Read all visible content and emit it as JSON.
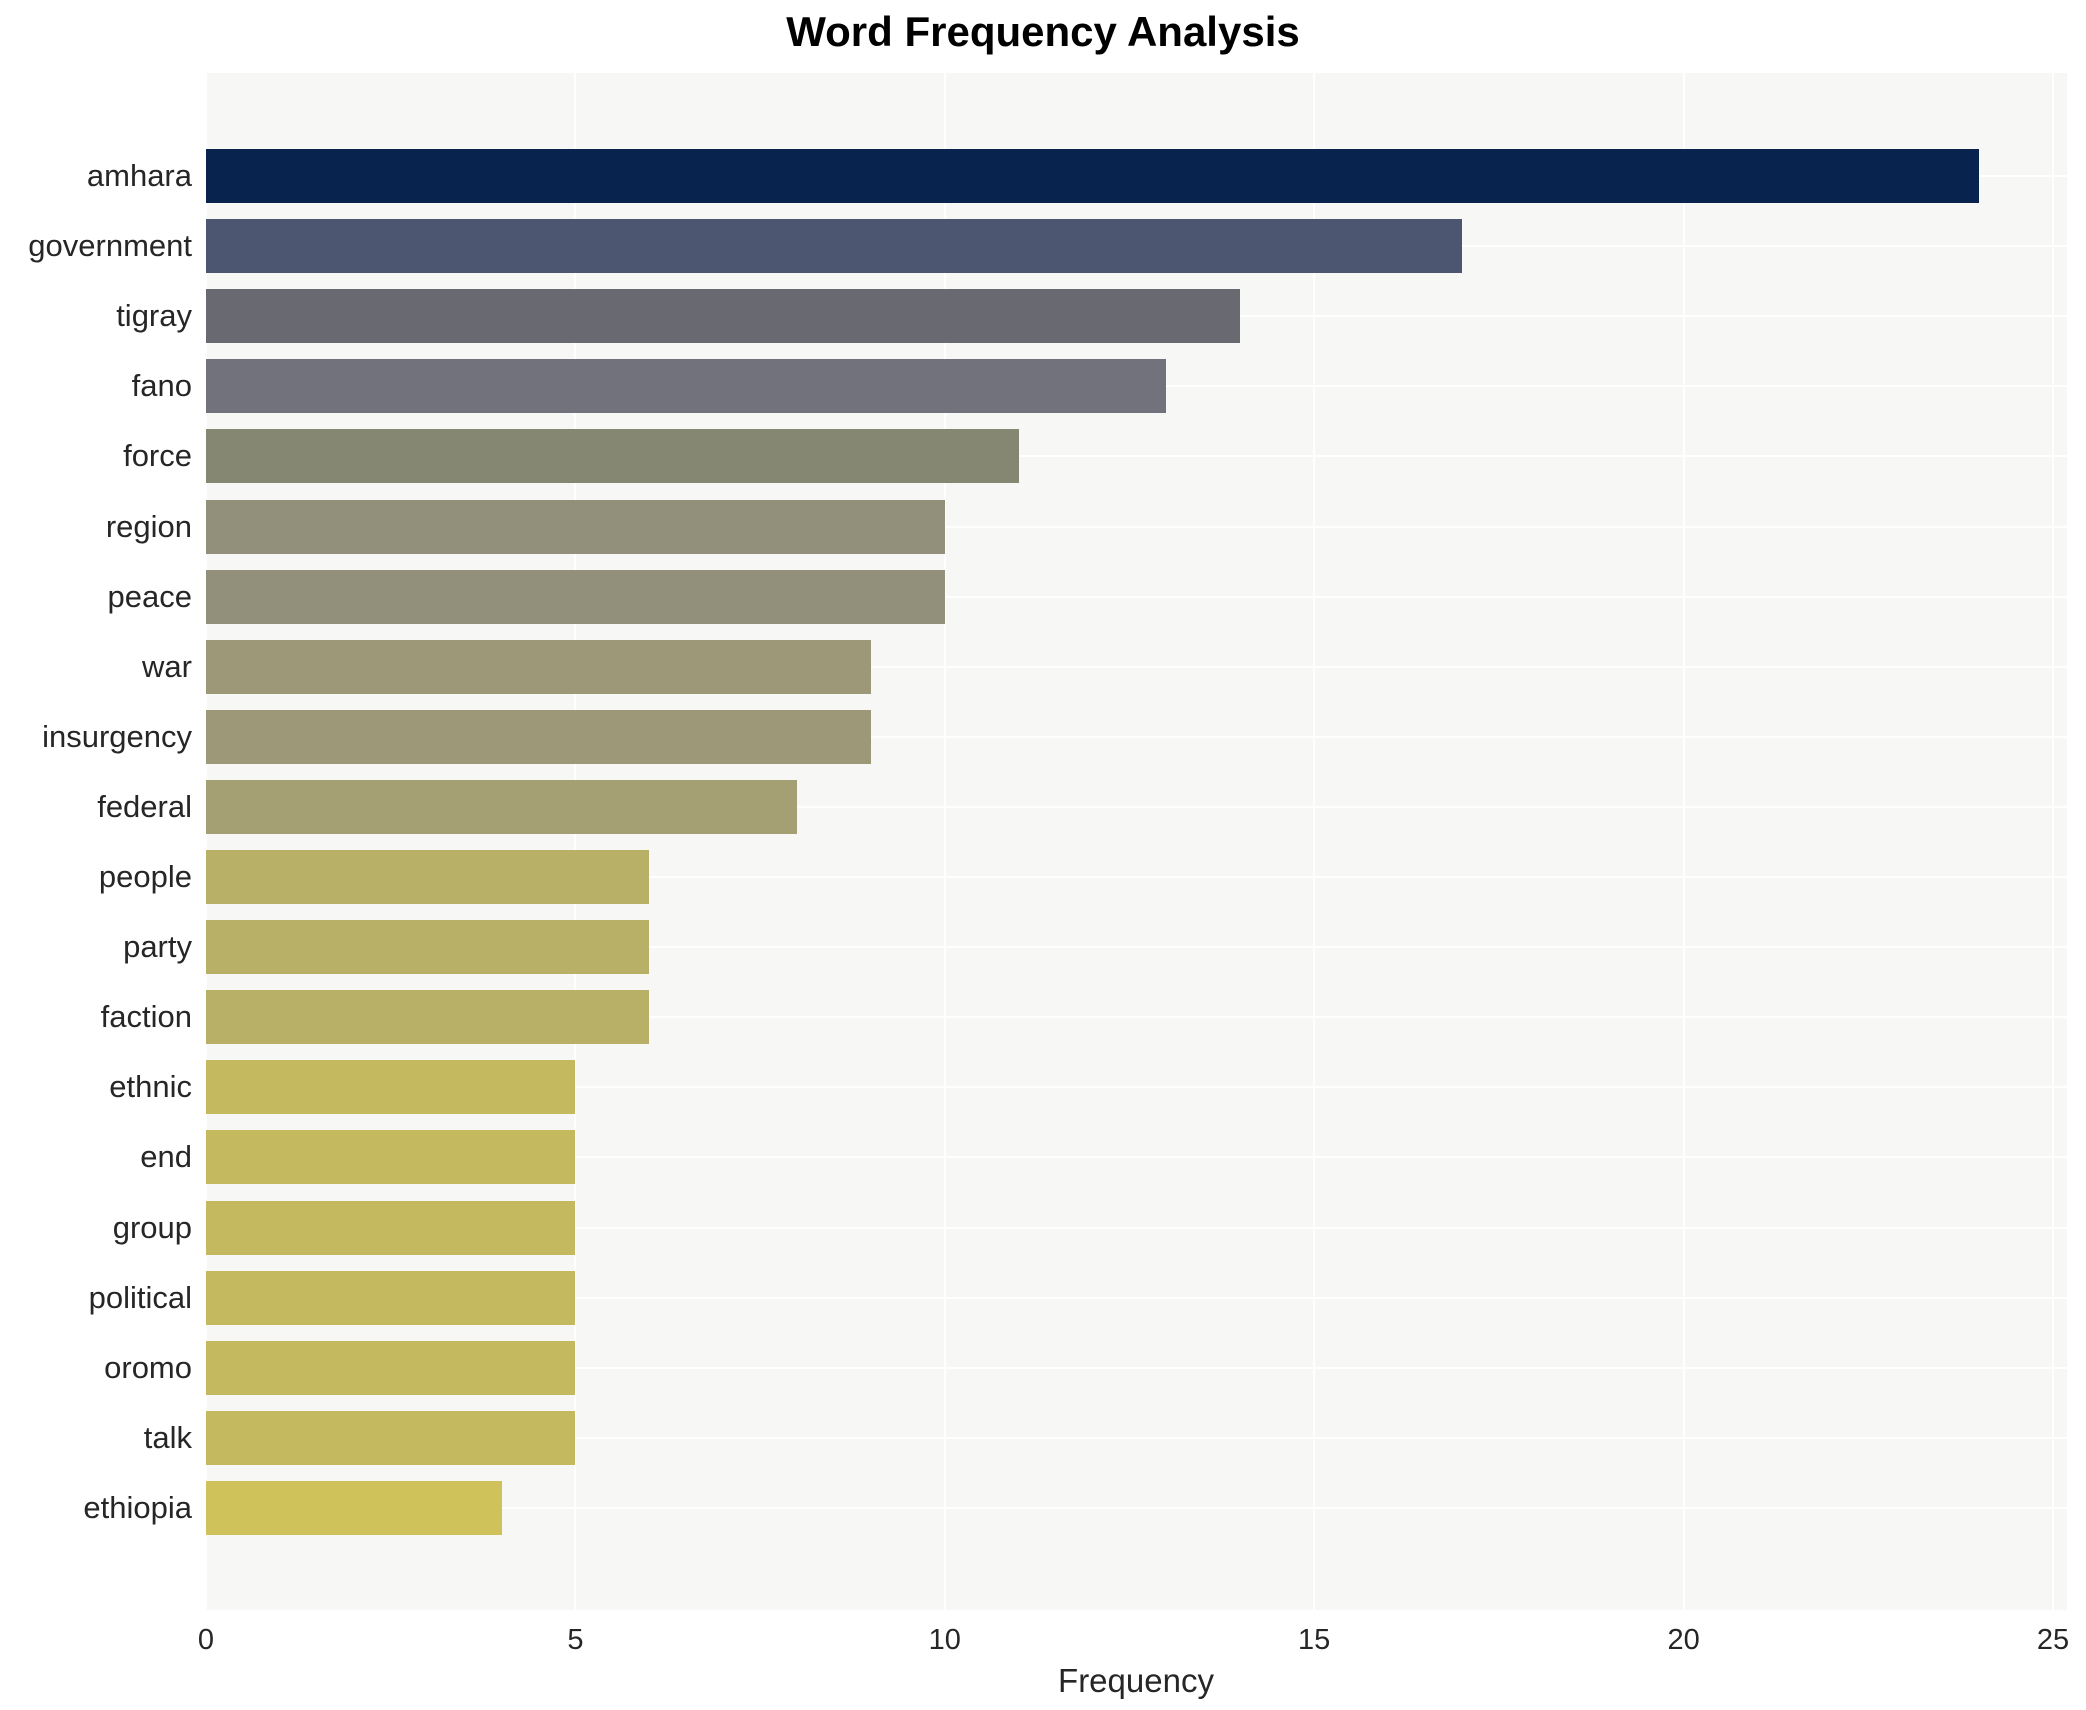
{
  "title": "Word Frequency Analysis",
  "chart_data": {
    "type": "bar",
    "orientation": "horizontal",
    "title": "Word Frequency Analysis",
    "xlabel": "Frequency",
    "ylabel": "",
    "categories": [
      "amhara",
      "government",
      "tigray",
      "fano",
      "force",
      "region",
      "peace",
      "war",
      "insurgency",
      "federal",
      "people",
      "party",
      "faction",
      "ethnic",
      "end",
      "group",
      "political",
      "oromo",
      "talk",
      "ethiopia"
    ],
    "values": [
      24,
      17,
      14,
      13,
      11,
      10,
      10,
      9,
      9,
      8,
      6,
      6,
      6,
      5,
      5,
      5,
      5,
      5,
      5,
      4
    ],
    "bar_colors": [
      "#08234e",
      "#4c5671",
      "#696a71",
      "#71727b",
      "#868773",
      "#928f7b",
      "#928f7b",
      "#9c9878",
      "#9c9878",
      "#a5a074",
      "#b9b067",
      "#b9b067",
      "#b9b067",
      "#c5b960",
      "#c5b960",
      "#c5b960",
      "#c5b960",
      "#c5b960",
      "#c5b960",
      "#cfc25a"
    ],
    "x_ticks": [
      0,
      5,
      10,
      15,
      20,
      25
    ],
    "xlim": [
      0,
      25.2
    ],
    "grid": true,
    "legend_position": "none",
    "plot_background": "#f7f7f5",
    "grid_color": "#ffffff",
    "colormap": "cividis"
  }
}
